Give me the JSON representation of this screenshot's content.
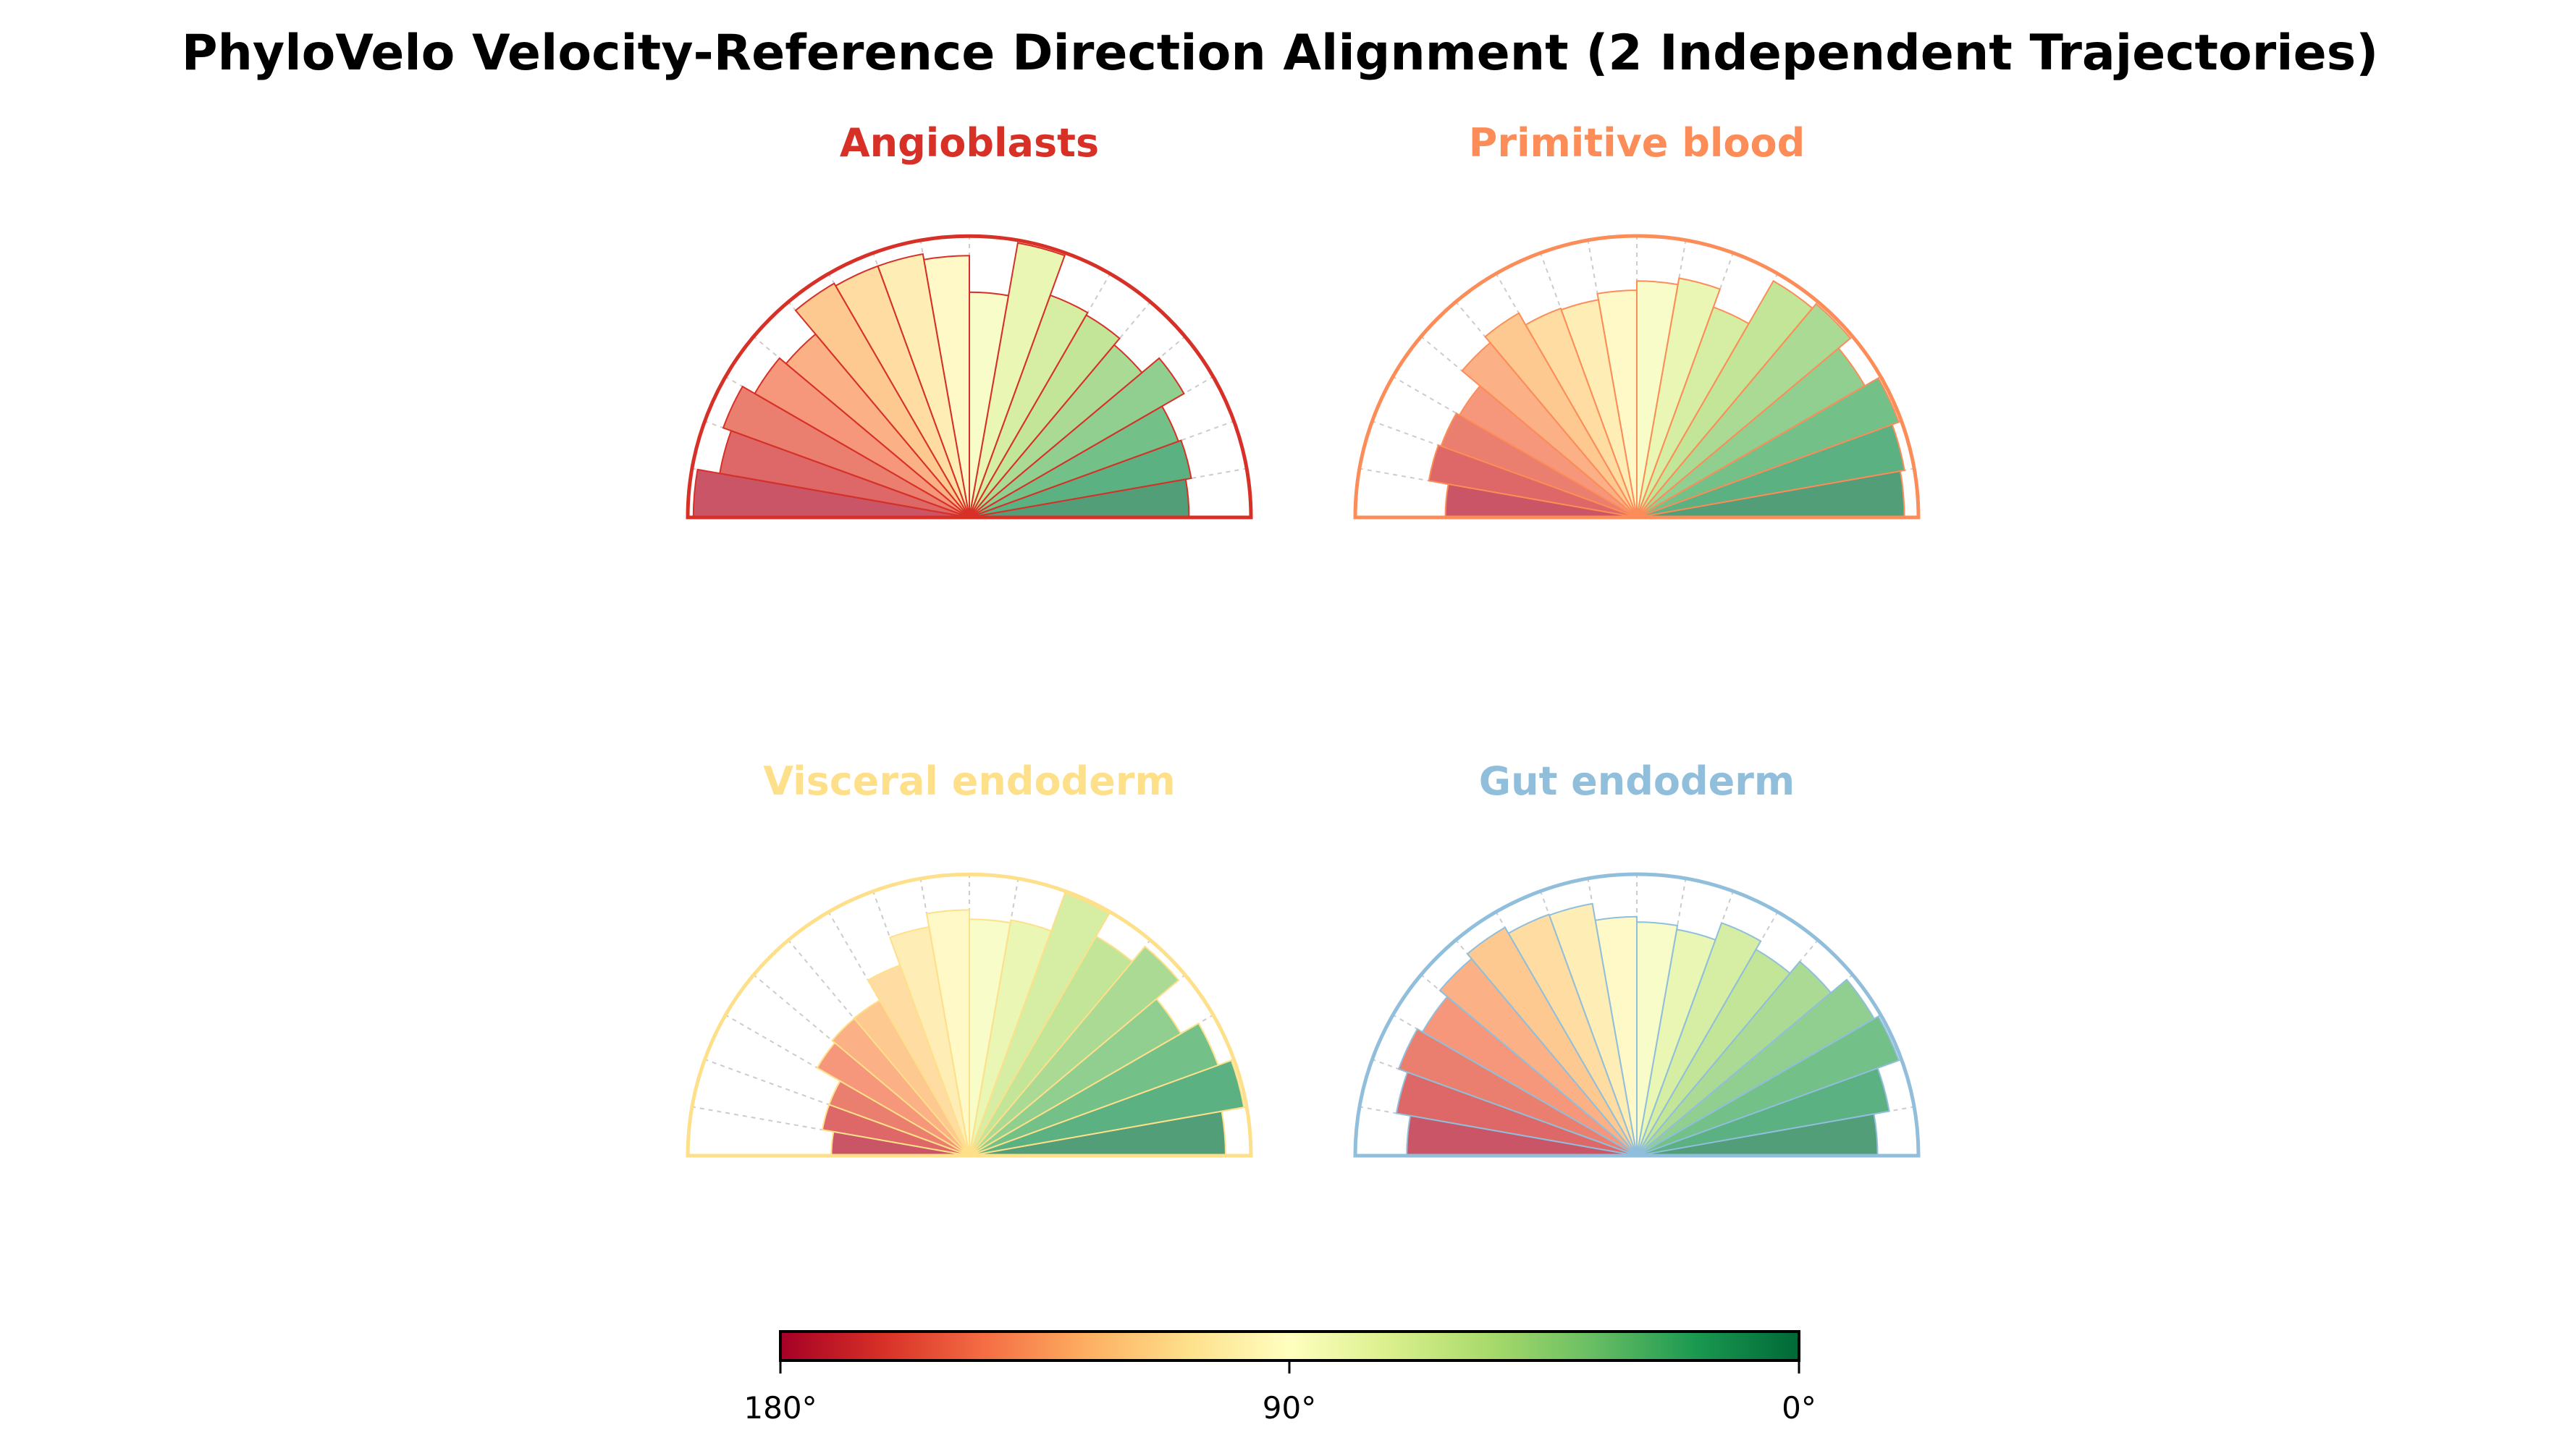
{
  "chart_data": {
    "type": "polar-bar",
    "title": "PhyloVelo Velocity-Reference Direction Alignment (2 Independent Trajectories)",
    "bin_edges_deg": [
      0,
      10,
      20,
      30,
      40,
      50,
      60,
      70,
      80,
      90,
      100,
      110,
      120,
      130,
      140,
      150,
      160,
      170,
      180
    ],
    "angle_range_deg": [
      0,
      180
    ],
    "radial_range": [
      0,
      1
    ],
    "value_note": "relative bar length per 10-degree bin, 0-10 first",
    "colormap": {
      "name": "RdYlGn",
      "stops": [
        "#a50026",
        "#d73027",
        "#f46d43",
        "#fdae61",
        "#fee08b",
        "#ffffbf",
        "#d9ef8b",
        "#a6d96a",
        "#66bd63",
        "#1a9850",
        "#006837"
      ],
      "bar_alpha": 0.7
    },
    "panels": [
      {
        "name": "Angioblasts",
        "color": "#d73027",
        "values": [
          0.78,
          0.8,
          0.79,
          0.88,
          0.8,
          0.83,
          0.84,
          0.99,
          0.8,
          0.93,
          0.95,
          0.95,
          0.96,
          0.85,
          0.88,
          0.93,
          0.9,
          0.98
        ]
      },
      {
        "name": "Primitive blood",
        "color": "#fc8d59",
        "values": [
          0.95,
          0.965,
          0.99,
          0.935,
          0.99,
          0.97,
          0.795,
          0.863,
          0.84,
          0.807,
          0.785,
          0.79,
          0.838,
          0.81,
          0.727,
          0.74,
          0.75,
          0.68
        ]
      },
      {
        "name": "Visceral endoderm",
        "color": "#fee08b",
        "values": [
          0.91,
          0.99,
          0.94,
          0.867,
          0.97,
          0.9,
          0.993,
          0.85,
          0.84,
          0.873,
          0.825,
          0.72,
          0.637,
          0.636,
          0.624,
          0.53,
          0.53,
          0.49
        ]
      },
      {
        "name": "Gut endoderm",
        "color": "#91bfdb",
        "values": [
          0.855,
          0.91,
          0.99,
          0.973,
          0.9,
          0.846,
          0.88,
          0.816,
          0.83,
          0.849,
          0.909,
          0.912,
          0.936,
          0.913,
          0.879,
          0.9,
          0.867,
          0.817
        ]
      }
    ],
    "colorbar": {
      "range_deg": [
        180,
        0
      ],
      "ticks": [
        {
          "value": 180,
          "label": "180°"
        },
        {
          "value": 90,
          "label": "90°"
        },
        {
          "value": 0,
          "label": "0°"
        }
      ]
    }
  }
}
